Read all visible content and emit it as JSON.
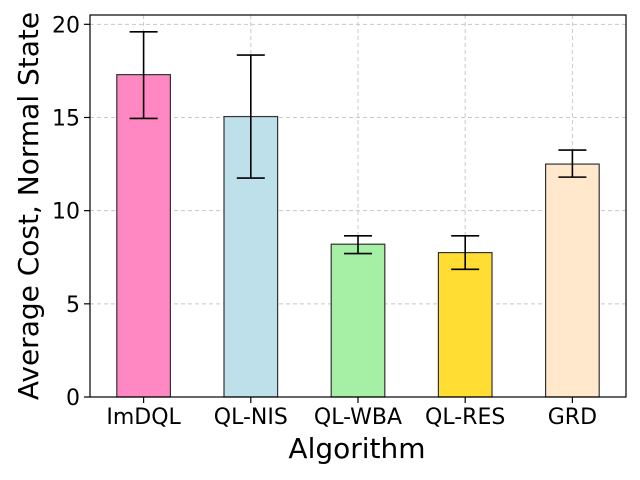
{
  "chart_data": {
    "type": "bar",
    "title": "",
    "xlabel": "Algorithm",
    "ylabel": "Average Cost, Normal State",
    "categories": [
      "ImDQL",
      "QL-NIS",
      "QL-WBA",
      "QL-RES",
      "GRD"
    ],
    "values": [
      17.3,
      15.05,
      8.2,
      7.75,
      12.5
    ],
    "error_low": [
      14.95,
      11.75,
      7.7,
      6.85,
      11.8
    ],
    "error_high": [
      19.6,
      18.35,
      8.65,
      8.65,
      13.25
    ],
    "colors": [
      "#ff88c2",
      "#bde0ea",
      "#a6f0a6",
      "#ffdd33",
      "#ffe8cc"
    ],
    "ylim": [
      0,
      20.5
    ],
    "yticks": [
      0,
      5,
      10,
      15,
      20
    ],
    "ytick_labels": [
      "0",
      "5",
      "10",
      "15",
      "20"
    ],
    "grid": true
  }
}
